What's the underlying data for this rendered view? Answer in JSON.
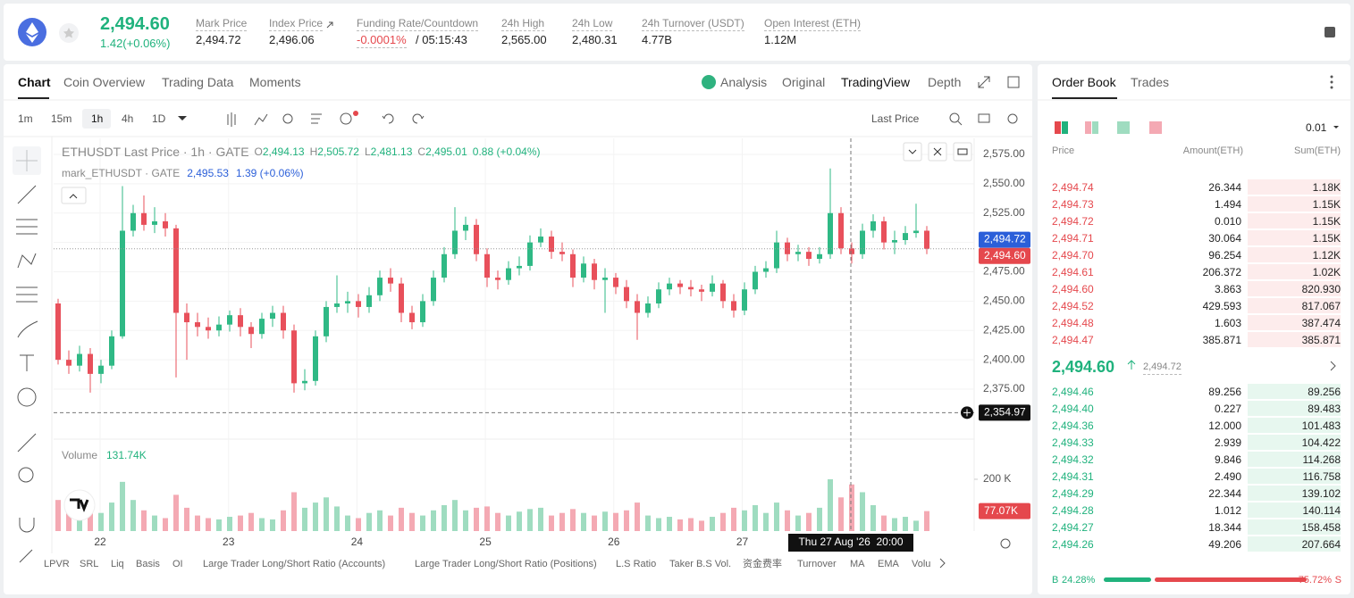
{
  "header": {
    "price": "2,494.60",
    "change": "1.42(+0.06%)",
    "stats": [
      {
        "label": "Mark Price",
        "value": "2,494.72"
      },
      {
        "label": "Index Price",
        "value": "2,496.06"
      },
      {
        "label": "Funding Rate/Countdown",
        "value": "-0.0001%",
        "extra": "/ 05:15:43"
      },
      {
        "label": "24h High",
        "value": "2,565.00"
      },
      {
        "label": "24h Low",
        "value": "2,480.31"
      },
      {
        "label": "24h Turnover (USDT)",
        "value": "4.77B"
      },
      {
        "label": "Open Interest (ETH)",
        "value": "1.12M"
      }
    ]
  },
  "chart_tabs": [
    "Chart",
    "Coin Overview",
    "Trading Data",
    "Moments"
  ],
  "view_tabs": [
    "Analysis",
    "Original",
    "TradingView",
    "Depth"
  ],
  "intervals": [
    "1m",
    "15m",
    "1h",
    "4h",
    "1D"
  ],
  "price_source": "Last Price",
  "legend": {
    "symbol": "ETHUSDT Last Price · 1h · GATE",
    "ohlc": [
      [
        "O",
        "2,494.13"
      ],
      [
        "H",
        "2,505.72"
      ],
      [
        "L",
        "2,481.13"
      ],
      [
        "C",
        "2,495.01"
      ]
    ],
    "change": "0.88 (+0.04%)",
    "mark_symbol": "mark_ETHUSDT · GATE",
    "mark_price": "2,495.53",
    "mark_change": "1.39 (+0.06%)"
  },
  "volume_legend": {
    "label": "Volume",
    "value": "131.74K"
  },
  "chart": {
    "type": "candlestick",
    "candles": [
      [
        2448,
        2452,
        2396,
        2400
      ],
      [
        2400,
        2408,
        2388,
        2395
      ],
      [
        2395,
        2412,
        2390,
        2405
      ],
      [
        2405,
        2410,
        2372,
        2388
      ],
      [
        2388,
        2400,
        2380,
        2395
      ],
      [
        2395,
        2425,
        2392,
        2420
      ],
      [
        2420,
        2548,
        2418,
        2510
      ],
      [
        2510,
        2532,
        2505,
        2525
      ],
      [
        2525,
        2540,
        2510,
        2515
      ],
      [
        2515,
        2530,
        2508,
        2518
      ],
      [
        2518,
        2525,
        2505,
        2512
      ],
      [
        2512,
        2515,
        2385,
        2440
      ],
      [
        2440,
        2448,
        2400,
        2432
      ],
      [
        2432,
        2440,
        2420,
        2428
      ],
      [
        2428,
        2436,
        2418,
        2425
      ],
      [
        2425,
        2437,
        2420,
        2430
      ],
      [
        2430,
        2442,
        2424,
        2438
      ],
      [
        2438,
        2444,
        2420,
        2428
      ],
      [
        2428,
        2432,
        2410,
        2422
      ],
      [
        2422,
        2440,
        2418,
        2435
      ],
      [
        2435,
        2446,
        2428,
        2440
      ],
      [
        2440,
        2446,
        2418,
        2425
      ],
      [
        2425,
        2430,
        2372,
        2380
      ],
      [
        2380,
        2392,
        2374,
        2382
      ],
      [
        2382,
        2425,
        2378,
        2420
      ],
      [
        2420,
        2450,
        2415,
        2445
      ],
      [
        2445,
        2472,
        2440,
        2448
      ],
      [
        2448,
        2458,
        2440,
        2450
      ],
      [
        2450,
        2456,
        2436,
        2445
      ],
      [
        2445,
        2462,
        2440,
        2455
      ],
      [
        2455,
        2476,
        2450,
        2470
      ],
      [
        2470,
        2478,
        2458,
        2465
      ],
      [
        2465,
        2470,
        2432,
        2440
      ],
      [
        2440,
        2446,
        2426,
        2432
      ],
      [
        2432,
        2456,
        2428,
        2450
      ],
      [
        2450,
        2476,
        2446,
        2470
      ],
      [
        2470,
        2496,
        2466,
        2490
      ],
      [
        2490,
        2530,
        2486,
        2510
      ],
      [
        2510,
        2522,
        2502,
        2515
      ],
      [
        2515,
        2520,
        2484,
        2490
      ],
      [
        2490,
        2495,
        2462,
        2470
      ],
      [
        2470,
        2476,
        2460,
        2468
      ],
      [
        2468,
        2484,
        2464,
        2478
      ],
      [
        2478,
        2488,
        2472,
        2480
      ],
      [
        2480,
        2506,
        2476,
        2500
      ],
      [
        2500,
        2512,
        2496,
        2505
      ],
      [
        2505,
        2510,
        2486,
        2492
      ],
      [
        2492,
        2500,
        2484,
        2490
      ],
      [
        2490,
        2494,
        2462,
        2470
      ],
      [
        2470,
        2488,
        2466,
        2482
      ],
      [
        2482,
        2486,
        2460,
        2468
      ],
      [
        2468,
        2478,
        2440,
        2470
      ],
      [
        2470,
        2474,
        2456,
        2462
      ],
      [
        2462,
        2468,
        2444,
        2450
      ],
      [
        2450,
        2456,
        2417,
        2440
      ],
      [
        2440,
        2454,
        2436,
        2448
      ],
      [
        2448,
        2466,
        2444,
        2460
      ],
      [
        2460,
        2470,
        2455,
        2465
      ],
      [
        2465,
        2468,
        2456,
        2462
      ],
      [
        2462,
        2468,
        2454,
        2460
      ],
      [
        2460,
        2464,
        2450,
        2458
      ],
      [
        2458,
        2472,
        2454,
        2465
      ],
      [
        2465,
        2468,
        2444,
        2450
      ],
      [
        2450,
        2456,
        2436,
        2442
      ],
      [
        2442,
        2466,
        2438,
        2460
      ],
      [
        2460,
        2480,
        2456,
        2475
      ],
      [
        2475,
        2484,
        2470,
        2478
      ],
      [
        2478,
        2510,
        2474,
        2500
      ],
      [
        2500,
        2504,
        2484,
        2490
      ],
      [
        2490,
        2498,
        2484,
        2492
      ],
      [
        2492,
        2496,
        2480,
        2486
      ],
      [
        2486,
        2496,
        2482,
        2490
      ],
      [
        2490,
        2563,
        2486,
        2525
      ],
      [
        2525,
        2530,
        2490,
        2495
      ],
      [
        2495,
        2500,
        2482,
        2490
      ],
      [
        2490,
        2516,
        2486,
        2510
      ],
      [
        2510,
        2524,
        2504,
        2518
      ],
      [
        2518,
        2522,
        2494,
        2500
      ],
      [
        2500,
        2510,
        2490,
        2502
      ],
      [
        2502,
        2514,
        2498,
        2508
      ],
      [
        2508,
        2533,
        2504,
        2510
      ],
      [
        2510,
        2514,
        2490,
        2494.6
      ]
    ],
    "volumes": [
      120,
      80,
      60,
      95,
      70,
      110,
      190,
      120,
      80,
      60,
      50,
      140,
      90,
      60,
      50,
      45,
      55,
      60,
      70,
      50,
      45,
      80,
      150,
      90,
      110,
      130,
      95,
      60,
      50,
      70,
      80,
      60,
      90,
      70,
      60,
      80,
      100,
      120,
      80,
      90,
      95,
      70,
      60,
      75,
      85,
      90,
      60,
      70,
      85,
      70,
      60,
      75,
      70,
      80,
      110,
      60,
      50,
      55,
      45,
      50,
      40,
      55,
      70,
      90,
      80,
      100,
      70,
      110,
      80,
      60,
      70,
      90,
      200,
      130,
      180,
      150,
      100,
      60,
      50,
      55,
      40,
      77.07
    ],
    "ylim": [
      2332.4,
      2588.7
    ],
    "yticks": [
      {
        "value": 2575,
        "label": "2,575.00"
      },
      {
        "value": 2550,
        "label": "2,550.00"
      },
      {
        "value": 2525,
        "label": "2,525.00"
      },
      {
        "value": 2500,
        "label": "2,500.00"
      },
      {
        "value": 2475,
        "label": "2,475.00"
      },
      {
        "value": 2450,
        "label": "2,450.00"
      },
      {
        "value": 2425,
        "label": "2,425.00"
      },
      {
        "value": 2400,
        "label": "2,400.00"
      },
      {
        "value": 2375,
        "label": "2,375.00"
      }
    ],
    "vlim": [
      0,
      355
    ],
    "vticks": [
      {
        "value": 200,
        "label": "200 K"
      }
    ],
    "x_labels": [
      "22",
      "23",
      "24",
      "25",
      "26",
      "27"
    ],
    "mark_price": {
      "value": 2494.72,
      "label": "2,494.72"
    },
    "last_price": {
      "value": 2494.6,
      "label": "2,494.60"
    },
    "crosshair_price": {
      "value": 2354.97,
      "label": "2,354.97"
    },
    "crosshair_time": "Thu 27 Aug '26  20:00",
    "last_volume": {
      "value": 77.07,
      "label": "77.07K"
    },
    "grid": true
  },
  "indicators": [
    "LPVR",
    "SRL",
    "Liq",
    "Basis",
    "OI",
    "Large Trader Long/Short Ratio (Accounts)",
    "Large Trader Long/Short Ratio (Positions)",
    "L.S Ratio",
    "Taker B.S Vol.",
    "资金费率",
    "Turnover",
    "MA",
    "EMA",
    "Volu"
  ],
  "order_book": {
    "tabs": [
      "Order Book",
      "Trades"
    ],
    "precision": "0.01",
    "columns": [
      "Price",
      "Amount(ETH)",
      "Sum(ETH)"
    ],
    "asks": [
      [
        "2,494.74",
        "26.344",
        "1.18K"
      ],
      [
        "2,494.73",
        "1.494",
        "1.15K"
      ],
      [
        "2,494.72",
        "0.010",
        "1.15K"
      ],
      [
        "2,494.71",
        "30.064",
        "1.15K"
      ],
      [
        "2,494.70",
        "96.254",
        "1.12K"
      ],
      [
        "2,494.61",
        "206.372",
        "1.02K"
      ],
      [
        "2,494.60",
        "3.863",
        "820.930"
      ],
      [
        "2,494.52",
        "429.593",
        "817.067"
      ],
      [
        "2,494.48",
        "1.603",
        "387.474"
      ],
      [
        "2,494.47",
        "385.871",
        "385.871"
      ]
    ],
    "mid_price": "2,494.60",
    "mid_mark": "2,494.72",
    "bids": [
      [
        "2,494.46",
        "89.256",
        "89.256"
      ],
      [
        "2,494.40",
        "0.227",
        "89.483"
      ],
      [
        "2,494.36",
        "12.000",
        "101.483"
      ],
      [
        "2,494.33",
        "2.939",
        "104.422"
      ],
      [
        "2,494.32",
        "9.846",
        "114.268"
      ],
      [
        "2,494.31",
        "2.490",
        "116.758"
      ],
      [
        "2,494.29",
        "22.344",
        "139.102"
      ],
      [
        "2,494.28",
        "1.012",
        "140.114"
      ],
      [
        "2,494.27",
        "18.344",
        "158.458"
      ],
      [
        "2,494.26",
        "49.206",
        "207.664"
      ]
    ],
    "ratio": {
      "buy_letter": "B",
      "buy": 24.28,
      "buy_label": "24.28%",
      "sell": 75.72,
      "sell_label": "75.72%",
      "sell_letter": "S"
    }
  }
}
